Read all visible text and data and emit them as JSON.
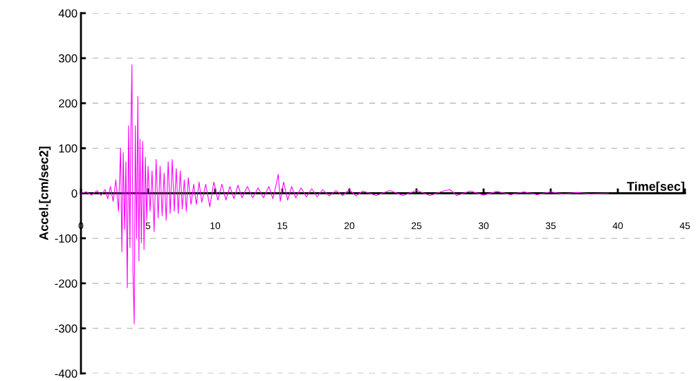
{
  "chart_data": {
    "type": "line",
    "xlabel": "Time[sec]",
    "ylabel": "Accel.[cm/sec2]",
    "xlim": [
      0,
      45
    ],
    "ylim": [
      -400,
      400
    ],
    "xticks": [
      0,
      5,
      10,
      15,
      20,
      25,
      30,
      35,
      40,
      45
    ],
    "yticks": [
      -400,
      -300,
      -200,
      -100,
      0,
      100,
      200,
      300,
      400
    ],
    "grid": "y",
    "series": [
      {
        "color": "#ff00ff",
        "x": [
          0,
          0.4,
          0.8,
          1.2,
          1.5,
          1.8,
          2.0,
          2.2,
          2.4,
          2.6,
          2.8,
          2.95,
          3.05,
          3.15,
          3.25,
          3.35,
          3.45,
          3.55,
          3.65,
          3.72,
          3.8,
          3.88,
          3.97,
          4.05,
          4.15,
          4.24,
          4.32,
          4.4,
          4.5,
          4.6,
          4.7,
          4.8,
          4.9,
          5.0,
          5.15,
          5.3,
          5.45,
          5.6,
          5.75,
          5.9,
          6.05,
          6.2,
          6.35,
          6.5,
          6.65,
          6.8,
          6.95,
          7.1,
          7.25,
          7.4,
          7.55,
          7.7,
          7.85,
          8.0,
          8.2,
          8.4,
          8.6,
          8.8,
          9.0,
          9.3,
          9.6,
          9.9,
          10.2,
          10.5,
          10.8,
          11.1,
          11.4,
          11.7,
          12.0,
          12.4,
          12.8,
          13.2,
          13.6,
          14.0,
          14.3,
          14.55,
          14.7,
          14.85,
          15.1,
          15.4,
          15.7,
          16.0,
          16.4,
          16.8,
          17.2,
          17.6,
          18.0,
          18.5,
          19.0,
          19.5,
          20.0,
          20.5,
          21.0,
          22.0,
          23.0,
          24.0,
          25.0,
          26.0,
          27.0,
          27.5,
          28.0,
          29.0,
          30.0,
          31.0,
          32.0,
          33.0,
          34.0,
          35.0,
          36.0,
          37.0,
          38.0,
          39.3
        ],
        "values": [
          0,
          3,
          -4,
          6,
          -5,
          8,
          -12,
          15,
          -18,
          30,
          -40,
          100,
          -130,
          90,
          -80,
          70,
          -210,
          150,
          -120,
          140,
          285,
          -180,
          -290,
          150,
          -100,
          215,
          -150,
          120,
          -110,
          115,
          -125,
          80,
          -60,
          60,
          -40,
          50,
          -85,
          75,
          -55,
          60,
          -50,
          45,
          -60,
          70,
          -45,
          75,
          -40,
          55,
          -45,
          50,
          -35,
          30,
          -40,
          35,
          -25,
          20,
          -25,
          25,
          -20,
          20,
          -30,
          25,
          -15,
          20,
          -15,
          15,
          -12,
          18,
          -10,
          15,
          -10,
          12,
          -10,
          15,
          -12,
          20,
          42,
          -18,
          25,
          -15,
          15,
          -10,
          12,
          -8,
          10,
          -8,
          8,
          -6,
          6,
          -5,
          8,
          -6,
          5,
          -5,
          6,
          -5,
          6,
          -5,
          5,
          8,
          -5,
          5,
          -4,
          4,
          -3,
          3,
          -3,
          3,
          -2,
          2,
          -2,
          0
        ]
      }
    ]
  }
}
